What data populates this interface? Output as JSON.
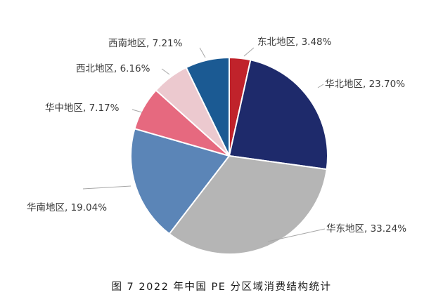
{
  "chart_data": {
    "type": "pie",
    "slices": [
      {
        "label": "东北地区, 3.48%",
        "name": "东北地区",
        "value": 3.48,
        "color": "#c0232b"
      },
      {
        "label": "华北地区, 23.70%",
        "name": "华北地区",
        "value": 23.7,
        "color": "#1e2a6b"
      },
      {
        "label": "华东地区, 33.24%",
        "name": "华东地区",
        "value": 33.24,
        "color": "#b5b5b5"
      },
      {
        "label": "华南地区, 19.04%",
        "name": "华南地区",
        "value": 19.04,
        "color": "#5b85b7"
      },
      {
        "label": "华中地区, 7.17%",
        "name": "华中地区",
        "value": 7.17,
        "color": "#e6697f"
      },
      {
        "label": "西北地区, 6.16%",
        "name": "西北地区",
        "value": 6.16,
        "color": "#ecc9cf"
      },
      {
        "label": "西南地区, 7.21%",
        "name": "西南地区",
        "value": 7.21,
        "color": "#1b5a93"
      }
    ]
  },
  "caption": "图 7  2022 年中国 PE 分区域消费结构统计"
}
